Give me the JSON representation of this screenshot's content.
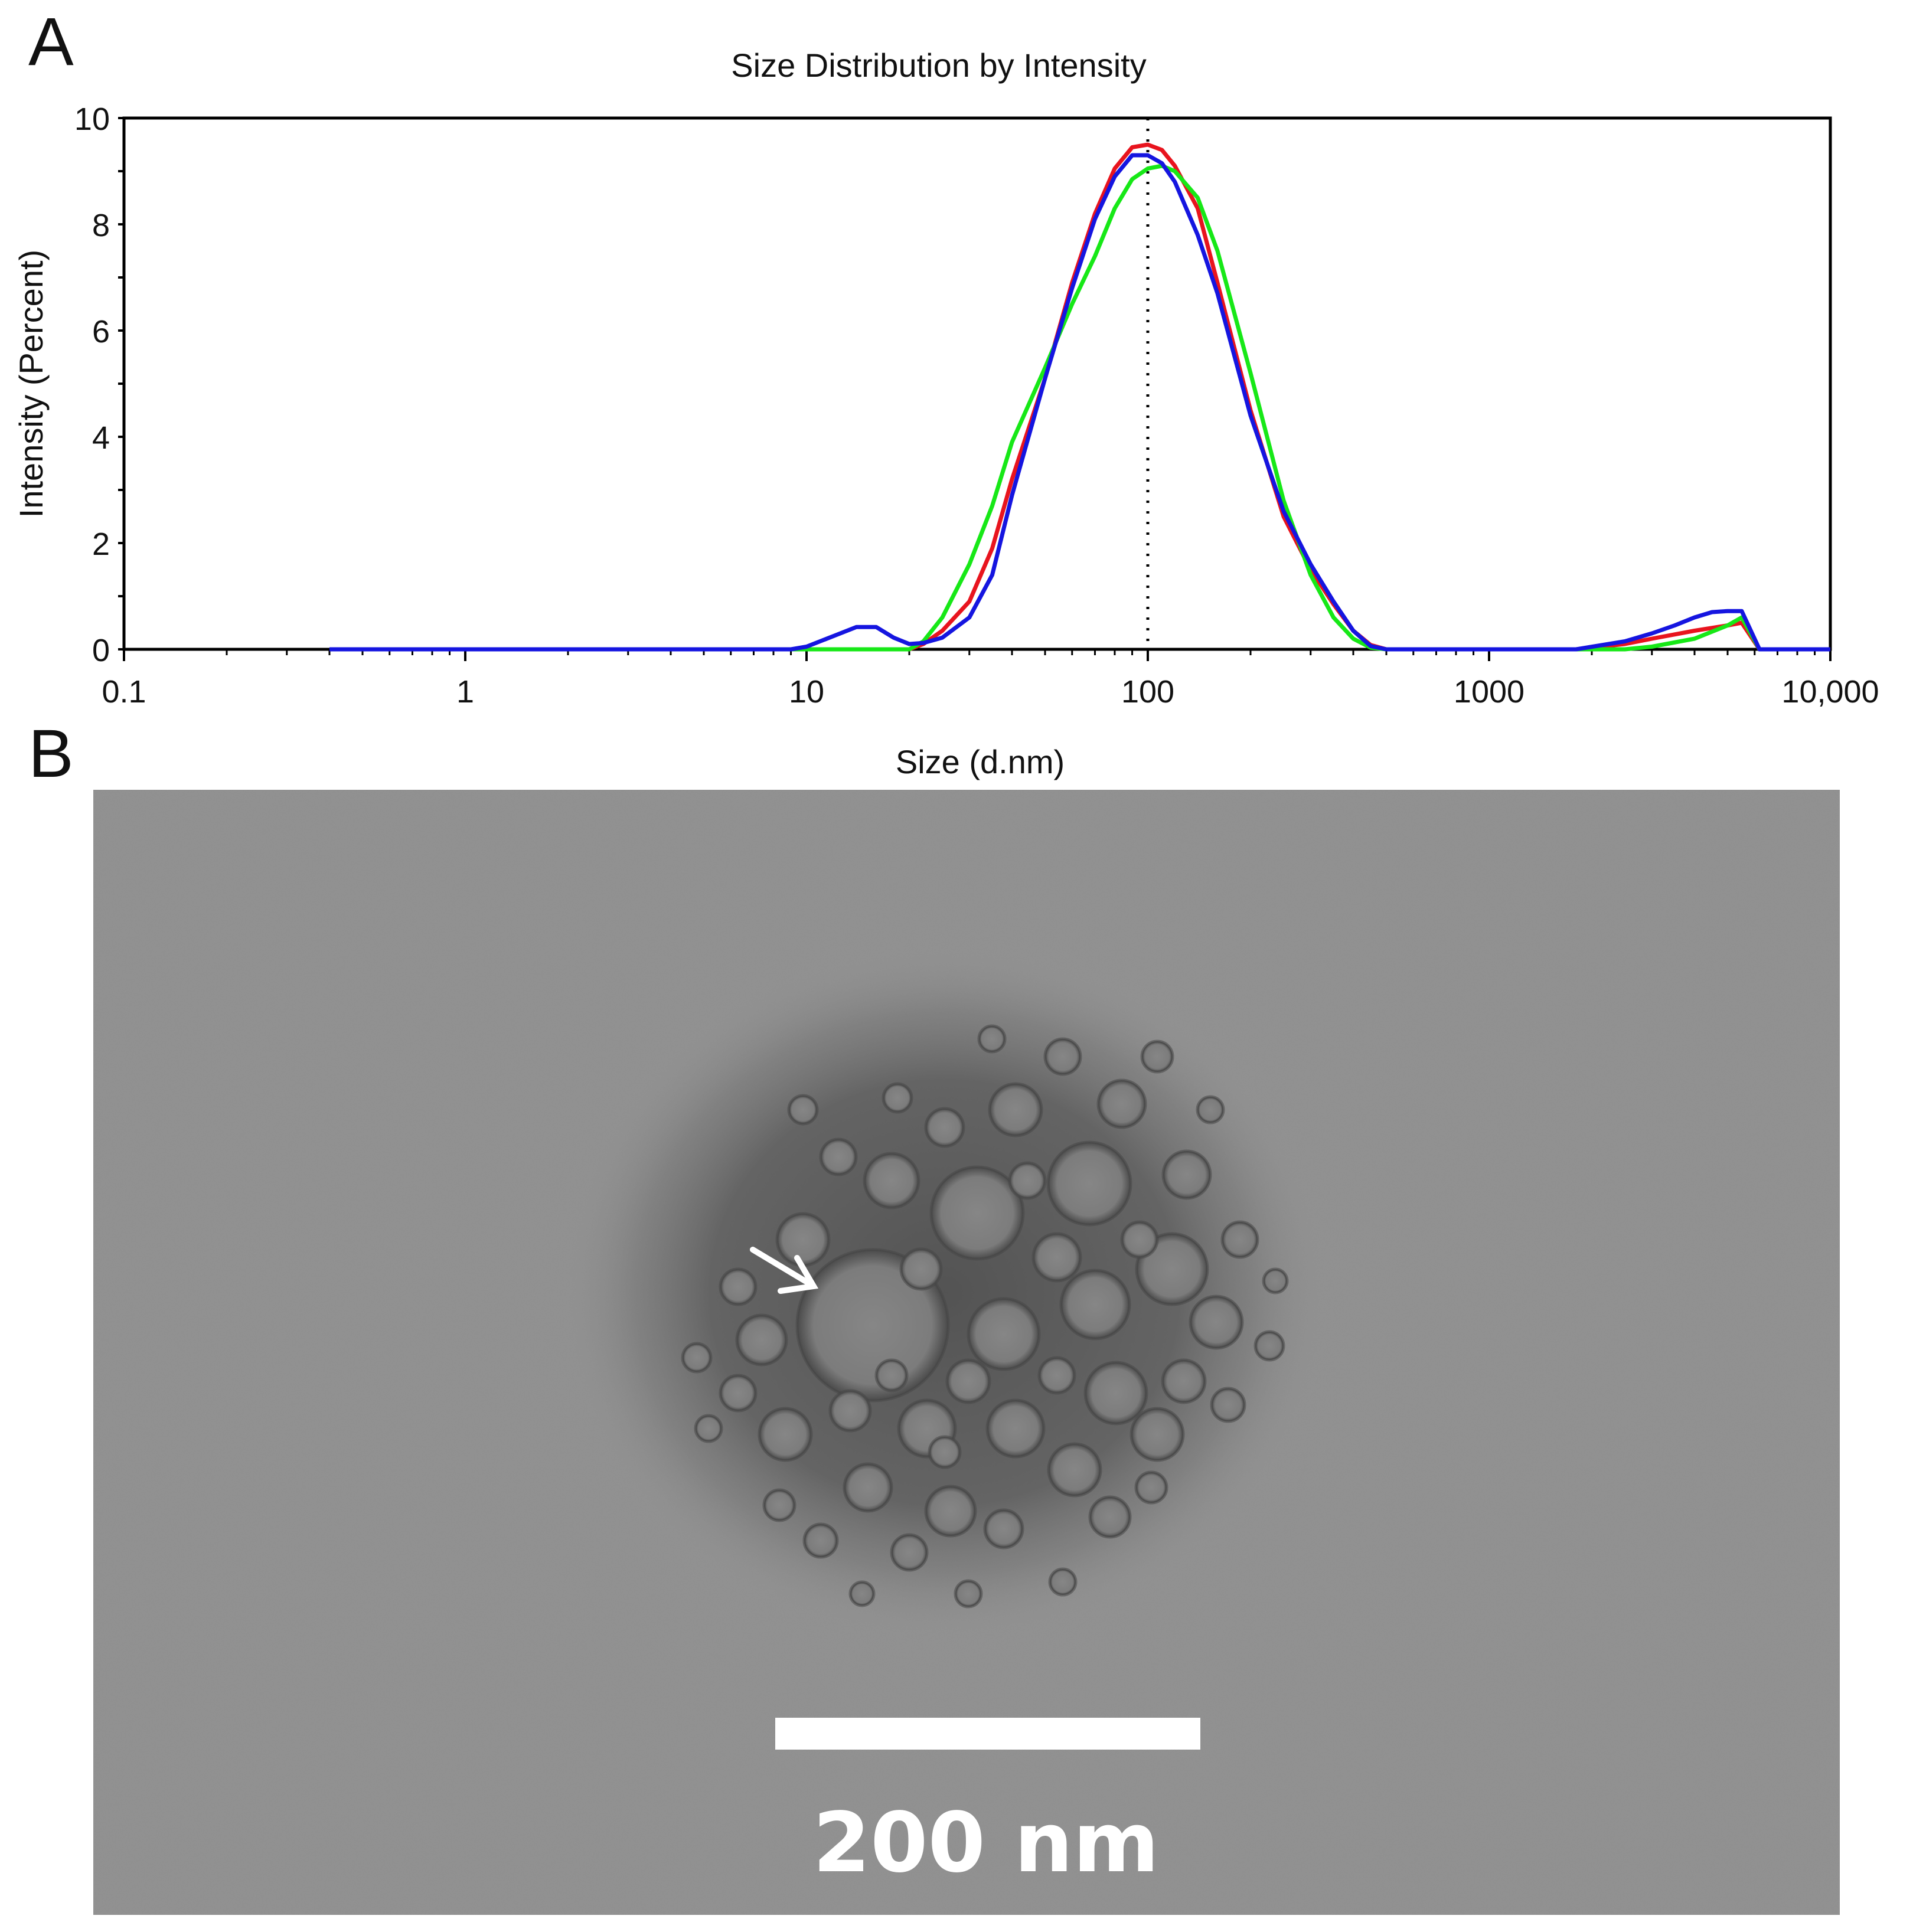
{
  "panels": {
    "a": "A",
    "b": "B"
  },
  "chart_data": {
    "type": "line",
    "title": "Size Distribution by Intensity",
    "xlabel": "Size (d.nm)",
    "ylabel": "Intensity (Percent)",
    "xscale": "log",
    "xlim": [
      0.1,
      10000
    ],
    "ylim": [
      0,
      10
    ],
    "xticks": [
      0.1,
      1,
      10,
      100,
      1000,
      10000
    ],
    "xtick_labels": [
      "0.1",
      "1",
      "10",
      "100",
      "1000",
      "10,000"
    ],
    "yticks": [
      0,
      2,
      4,
      6,
      8,
      10
    ],
    "ytick_labels": [
      "0",
      "2",
      "4",
      "6",
      "8",
      "10"
    ],
    "vline": {
      "x": 100,
      "style": "dotted",
      "color": "#000000"
    },
    "legend": false,
    "grid": false,
    "series": [
      {
        "color": "#e8141e",
        "x": [
          0.4,
          1,
          5,
          9,
          10,
          15,
          20,
          22,
          25,
          30,
          35,
          40,
          50,
          60,
          70,
          80,
          90,
          100,
          110,
          120,
          140,
          160,
          200,
          250,
          300,
          350,
          400,
          450,
          500,
          1000,
          1800,
          2500,
          3000,
          4000,
          5000,
          5500,
          6200,
          10000
        ],
        "y": [
          0,
          0,
          0,
          0,
          0,
          0,
          0,
          0.1,
          0.35,
          0.9,
          1.9,
          3.2,
          5.1,
          6.9,
          8.2,
          9.05,
          9.45,
          9.5,
          9.4,
          9.1,
          8.3,
          6.9,
          4.5,
          2.5,
          1.5,
          0.85,
          0.35,
          0.08,
          0,
          0,
          0,
          0.1,
          0.2,
          0.35,
          0.45,
          0.5,
          0,
          0
        ]
      },
      {
        "color": "#17e817",
        "x": [
          0.4,
          1,
          5,
          9,
          10,
          15,
          20,
          22,
          25,
          30,
          35,
          40,
          50,
          60,
          70,
          80,
          90,
          100,
          110,
          120,
          140,
          160,
          200,
          250,
          300,
          350,
          400,
          450,
          500,
          1000,
          1800,
          2500,
          3000,
          4000,
          5000,
          5500,
          6200,
          10000
        ],
        "y": [
          0,
          0,
          0,
          0,
          0,
          0,
          0,
          0.15,
          0.6,
          1.6,
          2.7,
          3.9,
          5.3,
          6.5,
          7.4,
          8.3,
          8.85,
          9.05,
          9.1,
          9.0,
          8.5,
          7.5,
          5.2,
          2.8,
          1.4,
          0.6,
          0.2,
          0.03,
          0,
          0,
          0,
          0,
          0.05,
          0.2,
          0.45,
          0.6,
          0,
          0
        ]
      },
      {
        "color": "#1515e0",
        "x": [
          0.4,
          1,
          5,
          9,
          10,
          12,
          14,
          16,
          18,
          20,
          22,
          25,
          30,
          35,
          40,
          50,
          60,
          70,
          80,
          90,
          100,
          110,
          120,
          140,
          160,
          200,
          250,
          300,
          350,
          400,
          450,
          500,
          1000,
          1800,
          2500,
          3000,
          3500,
          4000,
          4500,
          5000,
          5500,
          6200,
          10000
        ],
        "y": [
          0,
          0,
          0,
          0,
          0.05,
          0.25,
          0.42,
          0.42,
          0.22,
          0.1,
          0.12,
          0.22,
          0.6,
          1.4,
          2.9,
          5.1,
          6.8,
          8.1,
          8.9,
          9.3,
          9.3,
          9.15,
          8.8,
          7.8,
          6.7,
          4.4,
          2.6,
          1.6,
          0.9,
          0.35,
          0.06,
          0,
          0,
          0,
          0.15,
          0.3,
          0.45,
          0.6,
          0.7,
          0.72,
          0.72,
          0,
          0
        ]
      }
    ]
  },
  "micrograph": {
    "scale_bar_label": "200 nm"
  }
}
